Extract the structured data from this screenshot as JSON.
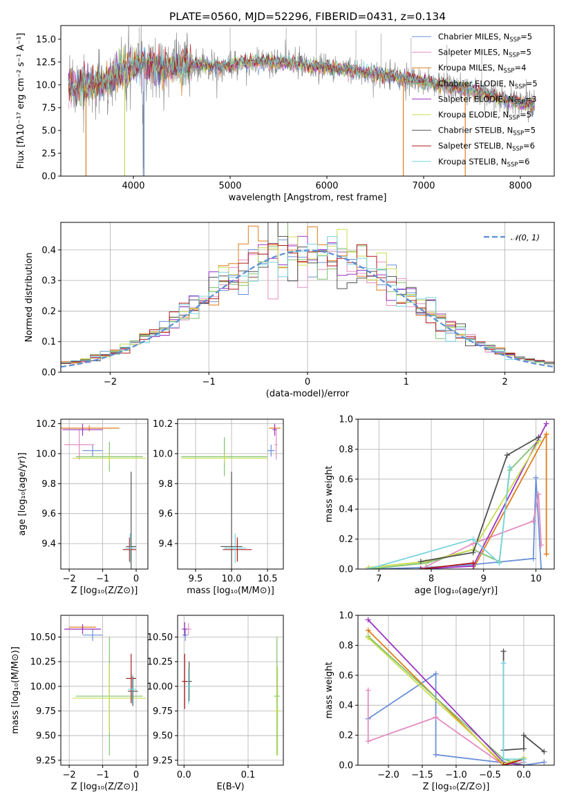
{
  "colors": {
    "chabrier_miles": "#6a8fd8",
    "salpeter_miles": "#e38cc0",
    "kroupa_miles": "#e07b1a",
    "chabrier_elodie": "#7ec26b",
    "salpeter_elodie": "#9a32c4",
    "kroupa_elodie": "#c8dc4c",
    "chabrier_stelib": "#505050",
    "salpeter_stelib": "#b01818",
    "kroupa_stelib": "#78d4dc",
    "data": "#8a8a8a",
    "normal": "#5b8ed4"
  },
  "chart_data": [
    {
      "id": "spectrum",
      "type": "line",
      "title": "PLATE=0560, MJD=52296, FIBERID=0431, z=0.134",
      "xlabel": "wavelength [Angstrom, rest frame]",
      "ylabel": "Flux [fλ10⁻¹⁷ erg cm⁻² s⁻¹ A⁻¹]",
      "xlim": [
        3250,
        8350
      ],
      "ylim": [
        0,
        16.5
      ],
      "xticks": [
        4000,
        5000,
        6000,
        7000,
        8000
      ],
      "yticks": [
        0.0,
        2.5,
        5.0,
        7.5,
        10.0,
        12.5,
        15.0
      ],
      "grid": false,
      "legend_position": "top-right",
      "legend": [
        {
          "label": "Chabrier MILES, N",
          "sub": "SSP",
          "tail": "=5"
        },
        {
          "label": "Salpeter MILES, N",
          "sub": "SSP",
          "tail": "=5"
        },
        {
          "label": "Kroupa MILES, N",
          "sub": "SSP",
          "tail": "=4"
        },
        {
          "label": "Chabrier ELODIE, N",
          "sub": "SSP",
          "tail": "=5"
        },
        {
          "label": "Salpeter ELODIE, N",
          "sub": "SSP",
          "tail": "=3"
        },
        {
          "label": "Kroupa ELODIE, N",
          "sub": "SSP",
          "tail": "=5"
        },
        {
          "label": "Chabrier STELIB, N",
          "sub": "SSP",
          "tail": "=5"
        },
        {
          "label": "Salpeter STELIB, N",
          "sub": "SSP",
          "tail": "=6"
        },
        {
          "label": "Kroupa STELIB, N",
          "sub": "SSP",
          "tail": "=6"
        }
      ],
      "continuum": {
        "x": [
          3300,
          3500,
          3700,
          3900,
          4100,
          4300,
          4500,
          4700,
          4900,
          5100,
          5300,
          5500,
          5700,
          5900,
          6100,
          6300,
          6500,
          6700,
          6900,
          7100,
          7300,
          7500,
          7700,
          7900,
          8100
        ],
        "y": [
          9.5,
          10.0,
          10.2,
          11.5,
          12.4,
          11.8,
          12.2,
          12.3,
          12.0,
          12.4,
          12.5,
          12.4,
          12.3,
          12.0,
          11.8,
          11.5,
          11.2,
          10.9,
          10.6,
          10.1,
          9.8,
          9.4,
          8.8,
          8.2,
          7.8
        ]
      }
    },
    {
      "id": "residuals",
      "type": "histogram",
      "xlabel": "(data-model)/error",
      "ylabel": "Normed distribution",
      "xlim": [
        -2.5,
        2.5
      ],
      "ylim": [
        0,
        0.49
      ],
      "xticks": [
        -2,
        -1,
        0,
        1,
        2
      ],
      "yticks": [
        0.0,
        0.1,
        0.2,
        0.3,
        0.4
      ],
      "grid": true,
      "legend_position": "top-right",
      "normal_label": "𝒩(0, 1)"
    },
    {
      "id": "age_vs_Z",
      "type": "scatter",
      "xlabel": "Z [log₁₀(Z/Z⊙)]",
      "ylabel": "age  [log₁₀(age/yr)]",
      "xlim": [
        -2.25,
        0.35
      ],
      "ylim": [
        9.23,
        10.23
      ],
      "xticks": [
        -2,
        -1,
        0
      ],
      "yticks": [
        9.4,
        9.6,
        9.8,
        10.0,
        10.2
      ],
      "grid": true,
      "points": [
        {
          "model": "chabrier_miles",
          "x": -1.3,
          "xerr": 0.3,
          "y": 10.02,
          "yerr": 0.04
        },
        {
          "model": "salpeter_miles",
          "x": -1.7,
          "xerr": 0.45,
          "y": 10.06,
          "yerr": 0.1
        },
        {
          "model": "kroupa_miles",
          "x": -1.4,
          "xerr": 0.9,
          "y": 10.17,
          "yerr": 0.02
        },
        {
          "model": "chabrier_elodie",
          "x": -0.8,
          "xerr": 1.0,
          "y": 9.98,
          "yerr": 0.1
        },
        {
          "model": "salpeter_elodie",
          "x": -1.6,
          "xerr": 0.6,
          "y": 10.16,
          "yerr": 0.04
        },
        {
          "model": "kroupa_elodie",
          "x": -0.8,
          "xerr": 1.1,
          "y": 9.97,
          "yerr": 0.03
        },
        {
          "model": "chabrier_stelib",
          "x": -0.15,
          "xerr": 0.15,
          "y": 9.38,
          "yerr": 0.5
        },
        {
          "model": "salpeter_stelib",
          "x": -0.2,
          "xerr": 0.2,
          "y": 9.36,
          "yerr": 0.08
        },
        {
          "model": "kroupa_stelib",
          "x": -0.18,
          "xerr": 0.15,
          "y": 9.37,
          "yerr": 0.1
        }
      ]
    },
    {
      "id": "age_vs_mass",
      "type": "scatter",
      "xlabel": "mass [log₁₀(M/M⊙)]",
      "xlim": [
        9.25,
        10.72
      ],
      "ylim": [
        9.23,
        10.23
      ],
      "xticks": [
        9.5,
        10.0,
        10.5
      ],
      "yticks": [
        9.4,
        9.6,
        9.8,
        10.0,
        10.2
      ],
      "grid": true,
      "points": [
        {
          "model": "chabrier_miles",
          "x": 10.55,
          "xerr": 0.05,
          "y": 10.02,
          "yerr": 0.04
        },
        {
          "model": "salpeter_miles",
          "x": 10.62,
          "xerr": 0.02,
          "y": 10.06,
          "yerr": 0.1
        },
        {
          "model": "kroupa_miles",
          "x": 10.6,
          "xerr": 0.08,
          "y": 10.17,
          "yerr": 0.02
        },
        {
          "model": "chabrier_elodie",
          "x": 9.9,
          "xerr": 0.6,
          "y": 9.98,
          "yerr": 0.13
        },
        {
          "model": "salpeter_elodie",
          "x": 10.6,
          "xerr": 0.03,
          "y": 10.16,
          "yerr": 0.04
        },
        {
          "model": "kroupa_elodie",
          "x": 9.9,
          "xerr": 0.6,
          "y": 9.97,
          "yerr": 0.03
        },
        {
          "model": "chabrier_stelib",
          "x": 10.0,
          "xerr": 0.15,
          "y": 9.38,
          "yerr": 0.5
        },
        {
          "model": "salpeter_stelib",
          "x": 10.08,
          "xerr": 0.2,
          "y": 9.36,
          "yerr": 0.08
        },
        {
          "model": "kroupa_stelib",
          "x": 10.05,
          "xerr": 0.15,
          "y": 9.37,
          "yerr": 0.1
        }
      ]
    },
    {
      "id": "massweight_vs_age",
      "type": "line",
      "xlabel": "age  [log₁₀(age/yr)]",
      "ylabel": "mass weight",
      "xlim": [
        6.6,
        10.35
      ],
      "ylim": [
        0,
        1.0
      ],
      "xticks": [
        7,
        8,
        9,
        10
      ],
      "yticks": [
        0.0,
        0.2,
        0.4,
        0.6,
        0.8,
        1.0
      ],
      "grid": true,
      "series": [
        {
          "model": "chabrier_miles",
          "x": [
            6.8,
            7.9,
            8.8,
            9.95,
            10.0,
            10.1
          ],
          "y": [
            0.0,
            0.01,
            0.03,
            0.07,
            0.61,
            0.0
          ]
        },
        {
          "model": "salpeter_miles",
          "x": [
            7.8,
            8.8,
            9.95,
            10.05,
            10.1
          ],
          "y": [
            0.0,
            0.17,
            0.32,
            0.5,
            0.16
          ]
        },
        {
          "model": "kroupa_miles",
          "x": [
            8.8,
            10.2,
            10.2
          ],
          "y": [
            0.0,
            0.9,
            0.1
          ]
        },
        {
          "model": "chabrier_elodie",
          "x": [
            6.8,
            7.9,
            8.8,
            9.3,
            9.5,
            10.05
          ],
          "y": [
            0.0,
            0.04,
            0.13,
            0.05,
            0.66,
            0.86
          ]
        },
        {
          "model": "salpeter_elodie",
          "x": [
            7.8,
            8.8,
            10.2
          ],
          "y": [
            0.0,
            0.02,
            0.97
          ]
        },
        {
          "model": "kroupa_elodie",
          "x": [
            6.8,
            7.9,
            8.8,
            10.05
          ],
          "y": [
            0.01,
            0.05,
            0.13,
            0.85
          ]
        },
        {
          "model": "chabrier_stelib",
          "x": [
            7.8,
            8.8,
            9.45,
            10.05
          ],
          "y": [
            0.05,
            0.11,
            0.76,
            0.88
          ]
        },
        {
          "model": "salpeter_stelib",
          "x": [
            7.8,
            8.8
          ],
          "y": [
            0.0,
            0.04
          ]
        },
        {
          "model": "kroupa_stelib",
          "x": [
            6.8,
            8.8,
            9.3,
            9.5
          ],
          "y": [
            0.0,
            0.2,
            0.04,
            0.68
          ]
        }
      ]
    },
    {
      "id": "mass_vs_Z",
      "type": "scatter",
      "xlabel": "Z [log₁₀(Z/Z⊙)]",
      "ylabel": "mass [log₁₀(M/M⊙)]",
      "xlim": [
        -2.25,
        0.35
      ],
      "ylim": [
        9.2,
        10.72
      ],
      "xticks": [
        -2,
        -1,
        0
      ],
      "yticks": [
        9.25,
        9.5,
        9.75,
        10.0,
        10.25,
        10.5
      ],
      "grid": true,
      "points": [
        {
          "model": "chabrier_miles",
          "x": -1.3,
          "xerr": 0.3,
          "y": 10.52,
          "yerr": 0.06
        },
        {
          "model": "salpeter_miles",
          "x": -1.6,
          "xerr": 0.45,
          "y": 10.58,
          "yerr": 0.02
        },
        {
          "model": "kroupa_miles",
          "x": -1.6,
          "xerr": 0.4,
          "y": 10.6,
          "yerr": 0.02
        },
        {
          "model": "chabrier_elodie",
          "x": -0.8,
          "xerr": 1.0,
          "y": 9.9,
          "yerr": 0.6
        },
        {
          "model": "salpeter_elodie",
          "x": -1.6,
          "xerr": 0.55,
          "y": 10.58,
          "yerr": 0.05
        },
        {
          "model": "kroupa_elodie",
          "x": -0.8,
          "xerr": 1.1,
          "y": 9.88,
          "yerr": 0.35
        },
        {
          "model": "chabrier_stelib",
          "x": -0.1,
          "xerr": 0.15,
          "y": 9.95,
          "yerr": 0.15
        },
        {
          "model": "salpeter_stelib",
          "x": -0.15,
          "xerr": 0.15,
          "y": 10.08,
          "yerr": 0.25
        },
        {
          "model": "kroupa_stelib",
          "x": -0.12,
          "xerr": 0.12,
          "y": 9.97,
          "yerr": 0.15
        }
      ]
    },
    {
      "id": "mass_vs_EBV",
      "type": "scatter",
      "xlabel": "E(B-V)",
      "xlim": [
        -0.01,
        0.155
      ],
      "ylim": [
        9.2,
        10.72
      ],
      "xticks": [
        0.0,
        0.1
      ],
      "yticks": [
        9.25,
        9.5,
        9.75,
        10.0,
        10.25,
        10.5
      ],
      "grid": true,
      "points": [
        {
          "model": "chabrier_miles",
          "x": 0.002,
          "xerr": 0.0,
          "y": 10.52,
          "yerr": 0.06
        },
        {
          "model": "salpeter_miles",
          "x": 0.007,
          "xerr": 0.0,
          "y": 10.58,
          "yerr": 0.06
        },
        {
          "model": "salpeter_elodie",
          "x": 0.001,
          "xerr": 0.0,
          "y": 10.58,
          "yerr": 0.07
        },
        {
          "model": "chabrier_elodie",
          "x": 0.145,
          "xerr": 0.0,
          "y": 9.9,
          "yerr": 0.6
        },
        {
          "model": "kroupa_elodie",
          "x": 0.146,
          "xerr": 0.0,
          "y": 9.75,
          "yerr": 0.45
        },
        {
          "model": "salpeter_stelib",
          "x": 0.001,
          "xerr": 0.0,
          "y": 10.05,
          "yerr": 0.28
        },
        {
          "model": "chabrier_stelib",
          "x": 0.008,
          "xerr": 0.0,
          "y": 10.05,
          "yerr": 0.2
        },
        {
          "model": "kroupa_stelib",
          "x": 0.007,
          "xerr": 0.0,
          "y": 10.0,
          "yerr": 0.18
        }
      ]
    },
    {
      "id": "massweight_vs_Z",
      "type": "line",
      "xlabel": "Z [log₁₀(Z/Z⊙)]",
      "ylabel": "mass weight",
      "xlim": [
        -2.45,
        0.45
      ],
      "ylim": [
        0,
        1.0
      ],
      "xticks": [
        -2.0,
        -1.5,
        -1.0,
        -0.5,
        0.0
      ],
      "yticks": [
        0.0,
        0.2,
        0.4,
        0.6,
        0.8,
        1.0
      ],
      "grid": true,
      "series": [
        {
          "model": "chabrier_miles",
          "x": [
            -2.3,
            -1.3,
            -1.3,
            0.0,
            0.3
          ],
          "y": [
            0.31,
            0.61,
            0.07,
            0.0,
            0.02
          ]
        },
        {
          "model": "salpeter_miles",
          "x": [
            -2.3,
            -2.3,
            -1.3,
            -0.3,
            0.0
          ],
          "y": [
            0.5,
            0.16,
            0.32,
            0.0,
            0.02
          ]
        },
        {
          "model": "kroupa_miles",
          "x": [
            -2.3,
            -0.3
          ],
          "y": [
            0.9,
            0.0
          ]
        },
        {
          "model": "chabrier_elodie",
          "x": [
            -2.3,
            -0.3,
            0.0
          ],
          "y": [
            0.86,
            0.04,
            0.0
          ]
        },
        {
          "model": "salpeter_elodie",
          "x": [
            -2.3,
            -0.3,
            0.0
          ],
          "y": [
            0.97,
            0.02,
            0.0
          ]
        },
        {
          "model": "kroupa_elodie",
          "x": [
            -2.3,
            -0.3,
            0.0
          ],
          "y": [
            0.85,
            0.01,
            0.05
          ]
        },
        {
          "model": "chabrier_stelib",
          "x": [
            -0.3,
            -0.3,
            0.0,
            0.0,
            0.3
          ],
          "y": [
            0.76,
            0.1,
            0.11,
            0.2,
            0.09
          ]
        },
        {
          "model": "salpeter_stelib",
          "x": [
            -0.3,
            0.0
          ],
          "y": [
            0.0,
            0.04
          ]
        },
        {
          "model": "kroupa_stelib",
          "x": [
            -0.3,
            -0.3,
            0.0,
            0.0
          ],
          "y": [
            0.68,
            0.04,
            0.04,
            0.0
          ]
        }
      ]
    }
  ]
}
